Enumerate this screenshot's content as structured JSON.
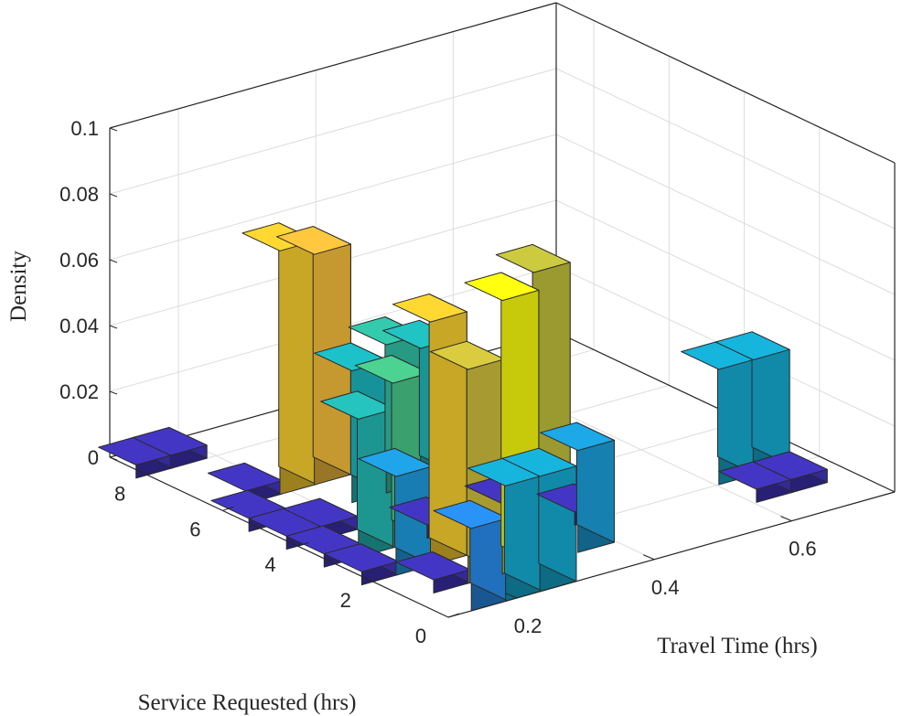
{
  "chart_data": {
    "type": "bar3",
    "title": "",
    "xlabel": "Travel Time (hrs)",
    "ylabel": "Service Requested (hrs)",
    "zlabel": "Density",
    "xlim": [
      0.1,
      0.75
    ],
    "ylim": [
      0,
      9
    ],
    "zlim": [
      0,
      0.1
    ],
    "xticks": [
      "0.2",
      "0.4",
      "0.6"
    ],
    "yticks": [
      "0",
      "2",
      "4",
      "6",
      "8"
    ],
    "zticks": [
      "0",
      "0.02",
      "0.04",
      "0.06",
      "0.08",
      "0.1"
    ],
    "grid": true,
    "colormap": "parula",
    "bar_width": 0.053,
    "bar_depth": 1.0,
    "bars": [
      {
        "x": 0.21,
        "y": 0.5,
        "z": 0.035
      },
      {
        "x": 0.26,
        "y": 0.5,
        "z": 0.035
      },
      {
        "x": 0.16,
        "y": 0.5,
        "z": 0.025
      },
      {
        "x": 0.16,
        "y": 1.5,
        "z": 0.004
      },
      {
        "x": 0.21,
        "y": 1.5,
        "z": 0.065
      },
      {
        "x": 0.26,
        "y": 1.5,
        "z": 0.083
      },
      {
        "x": 0.37,
        "y": 1.5,
        "z": 0.031
      },
      {
        "x": 0.11,
        "y": 2.5,
        "z": 0.004
      },
      {
        "x": 0.16,
        "y": 2.5,
        "z": 0.03
      },
      {
        "x": 0.21,
        "y": 2.5,
        "z": 0.074
      },
      {
        "x": 0.11,
        "y": 3.5,
        "z": 0.004
      },
      {
        "x": 0.16,
        "y": 3.5,
        "z": 0.042
      },
      {
        "x": 0.21,
        "y": 3.5,
        "z": 0.05
      },
      {
        "x": 0.26,
        "y": 3.5,
        "z": 0.004
      },
      {
        "x": 0.37,
        "y": 3.5,
        "z": 0.004
      },
      {
        "x": 0.11,
        "y": 4.5,
        "z": 0.004
      },
      {
        "x": 0.16,
        "y": 4.5,
        "z": 0.004
      },
      {
        "x": 0.63,
        "y": 1.5,
        "z": 0.004
      },
      {
        "x": 0.68,
        "y": 1.5,
        "z": 0.004
      },
      {
        "x": 0.63,
        "y": 2.5,
        "z": 0.035
      },
      {
        "x": 0.68,
        "y": 2.5,
        "z": 0.035
      },
      {
        "x": 0.42,
        "y": 2.5,
        "z": 0.004
      },
      {
        "x": 0.37,
        "y": 3.5,
        "z": 0.004
      },
      {
        "x": 0.11,
        "y": 5.5,
        "z": 0.004
      },
      {
        "x": 0.11,
        "y": 8.5,
        "z": 0.004
      },
      {
        "x": 0.16,
        "y": 8.5,
        "z": 0.004
      },
      {
        "x": 0.16,
        "y": 6.5,
        "z": 0.004
      },
      {
        "x": 0.21,
        "y": 6.5,
        "z": 0.074
      },
      {
        "x": 0.26,
        "y": 6.5,
        "z": 0.07
      },
      {
        "x": 0.26,
        "y": 5.5,
        "z": 0.04
      },
      {
        "x": 0.31,
        "y": 5.5,
        "z": 0.045
      },
      {
        "x": 0.36,
        "y": 5.5,
        "z": 0.041
      },
      {
        "x": 0.47,
        "y": 4.5,
        "z": 0.063
      }
    ]
  }
}
